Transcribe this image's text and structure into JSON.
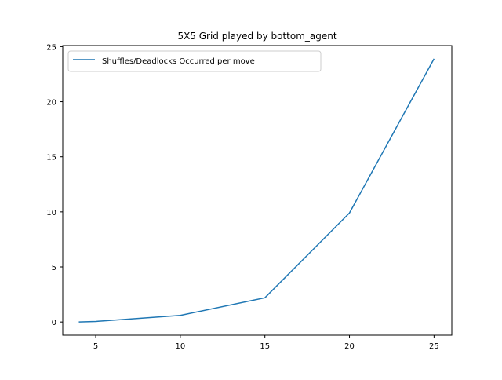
{
  "chart_data": {
    "type": "line",
    "title": "5X5 Grid played by bottom_agent",
    "xlabel": "",
    "ylabel": "",
    "x": [
      4,
      5,
      10,
      15,
      20,
      25
    ],
    "series": [
      {
        "name": "Shuffles/Deadlocks Occurred per move",
        "color": "#1f77b4",
        "values": [
          0.0,
          0.05,
          0.6,
          2.2,
          9.9,
          23.9
        ]
      }
    ],
    "xlim": [
      3.05,
      26.05
    ],
    "ylim": [
      -1.2,
      25.1
    ],
    "xticks": [
      5,
      10,
      15,
      20,
      25
    ],
    "xtick_labels": [
      "5",
      "10",
      "15",
      "20",
      "25"
    ],
    "yticks": [
      0,
      5,
      10,
      15,
      20,
      25
    ],
    "ytick_labels": [
      "0",
      "5",
      "10",
      "15",
      "20",
      "25"
    ],
    "grid": false,
    "legend_position": "upper-left"
  }
}
